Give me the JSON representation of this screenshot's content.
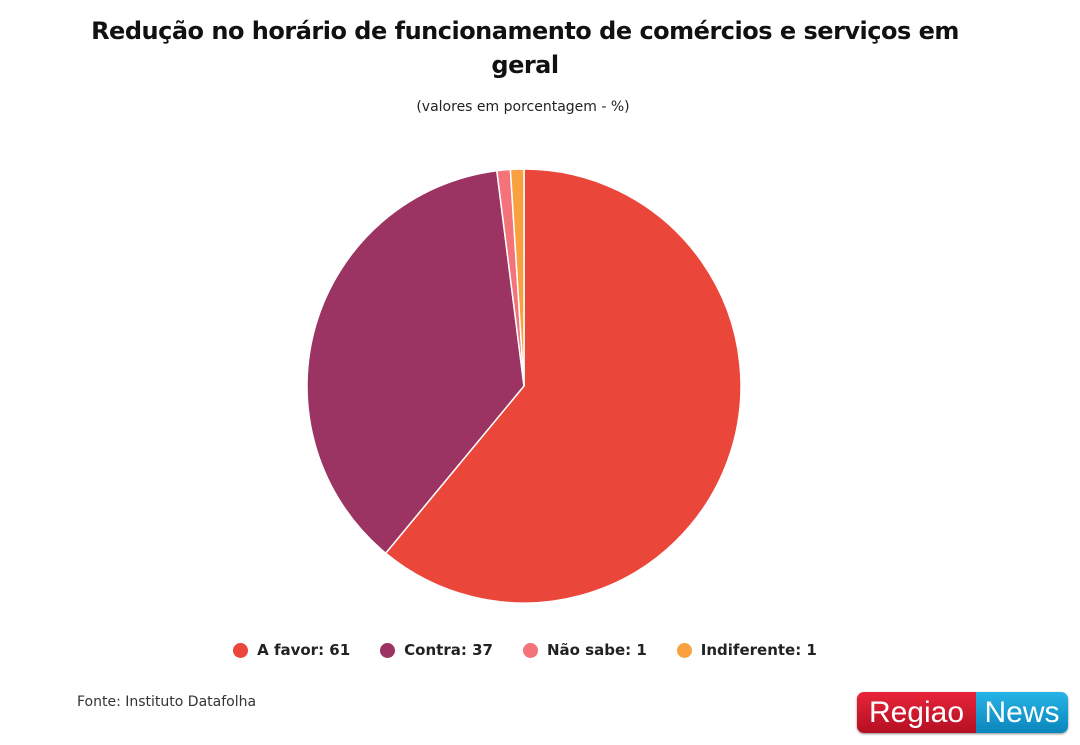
{
  "chart_data": {
    "type": "pie",
    "title": "Redução no horário de funcionamento de comércios e serviços em geral",
    "subtitle": "(valores em porcentagem - %)",
    "categories": [
      "A favor",
      "Contra",
      "Não sabe",
      "Indiferente"
    ],
    "values": [
      61,
      37,
      1,
      1
    ],
    "colors": [
      "#EB463A",
      "#9B3462",
      "#F4737B",
      "#F9A03F"
    ],
    "legend_labels": [
      "A favor: 61",
      "Contra: 37",
      "Não sabe: 1",
      "Indiferente: 1"
    ],
    "legend_position": "bottom"
  },
  "source": "Fonte: Instituto Datafolha",
  "logo": {
    "part1": "Regiao",
    "part2": "News"
  }
}
